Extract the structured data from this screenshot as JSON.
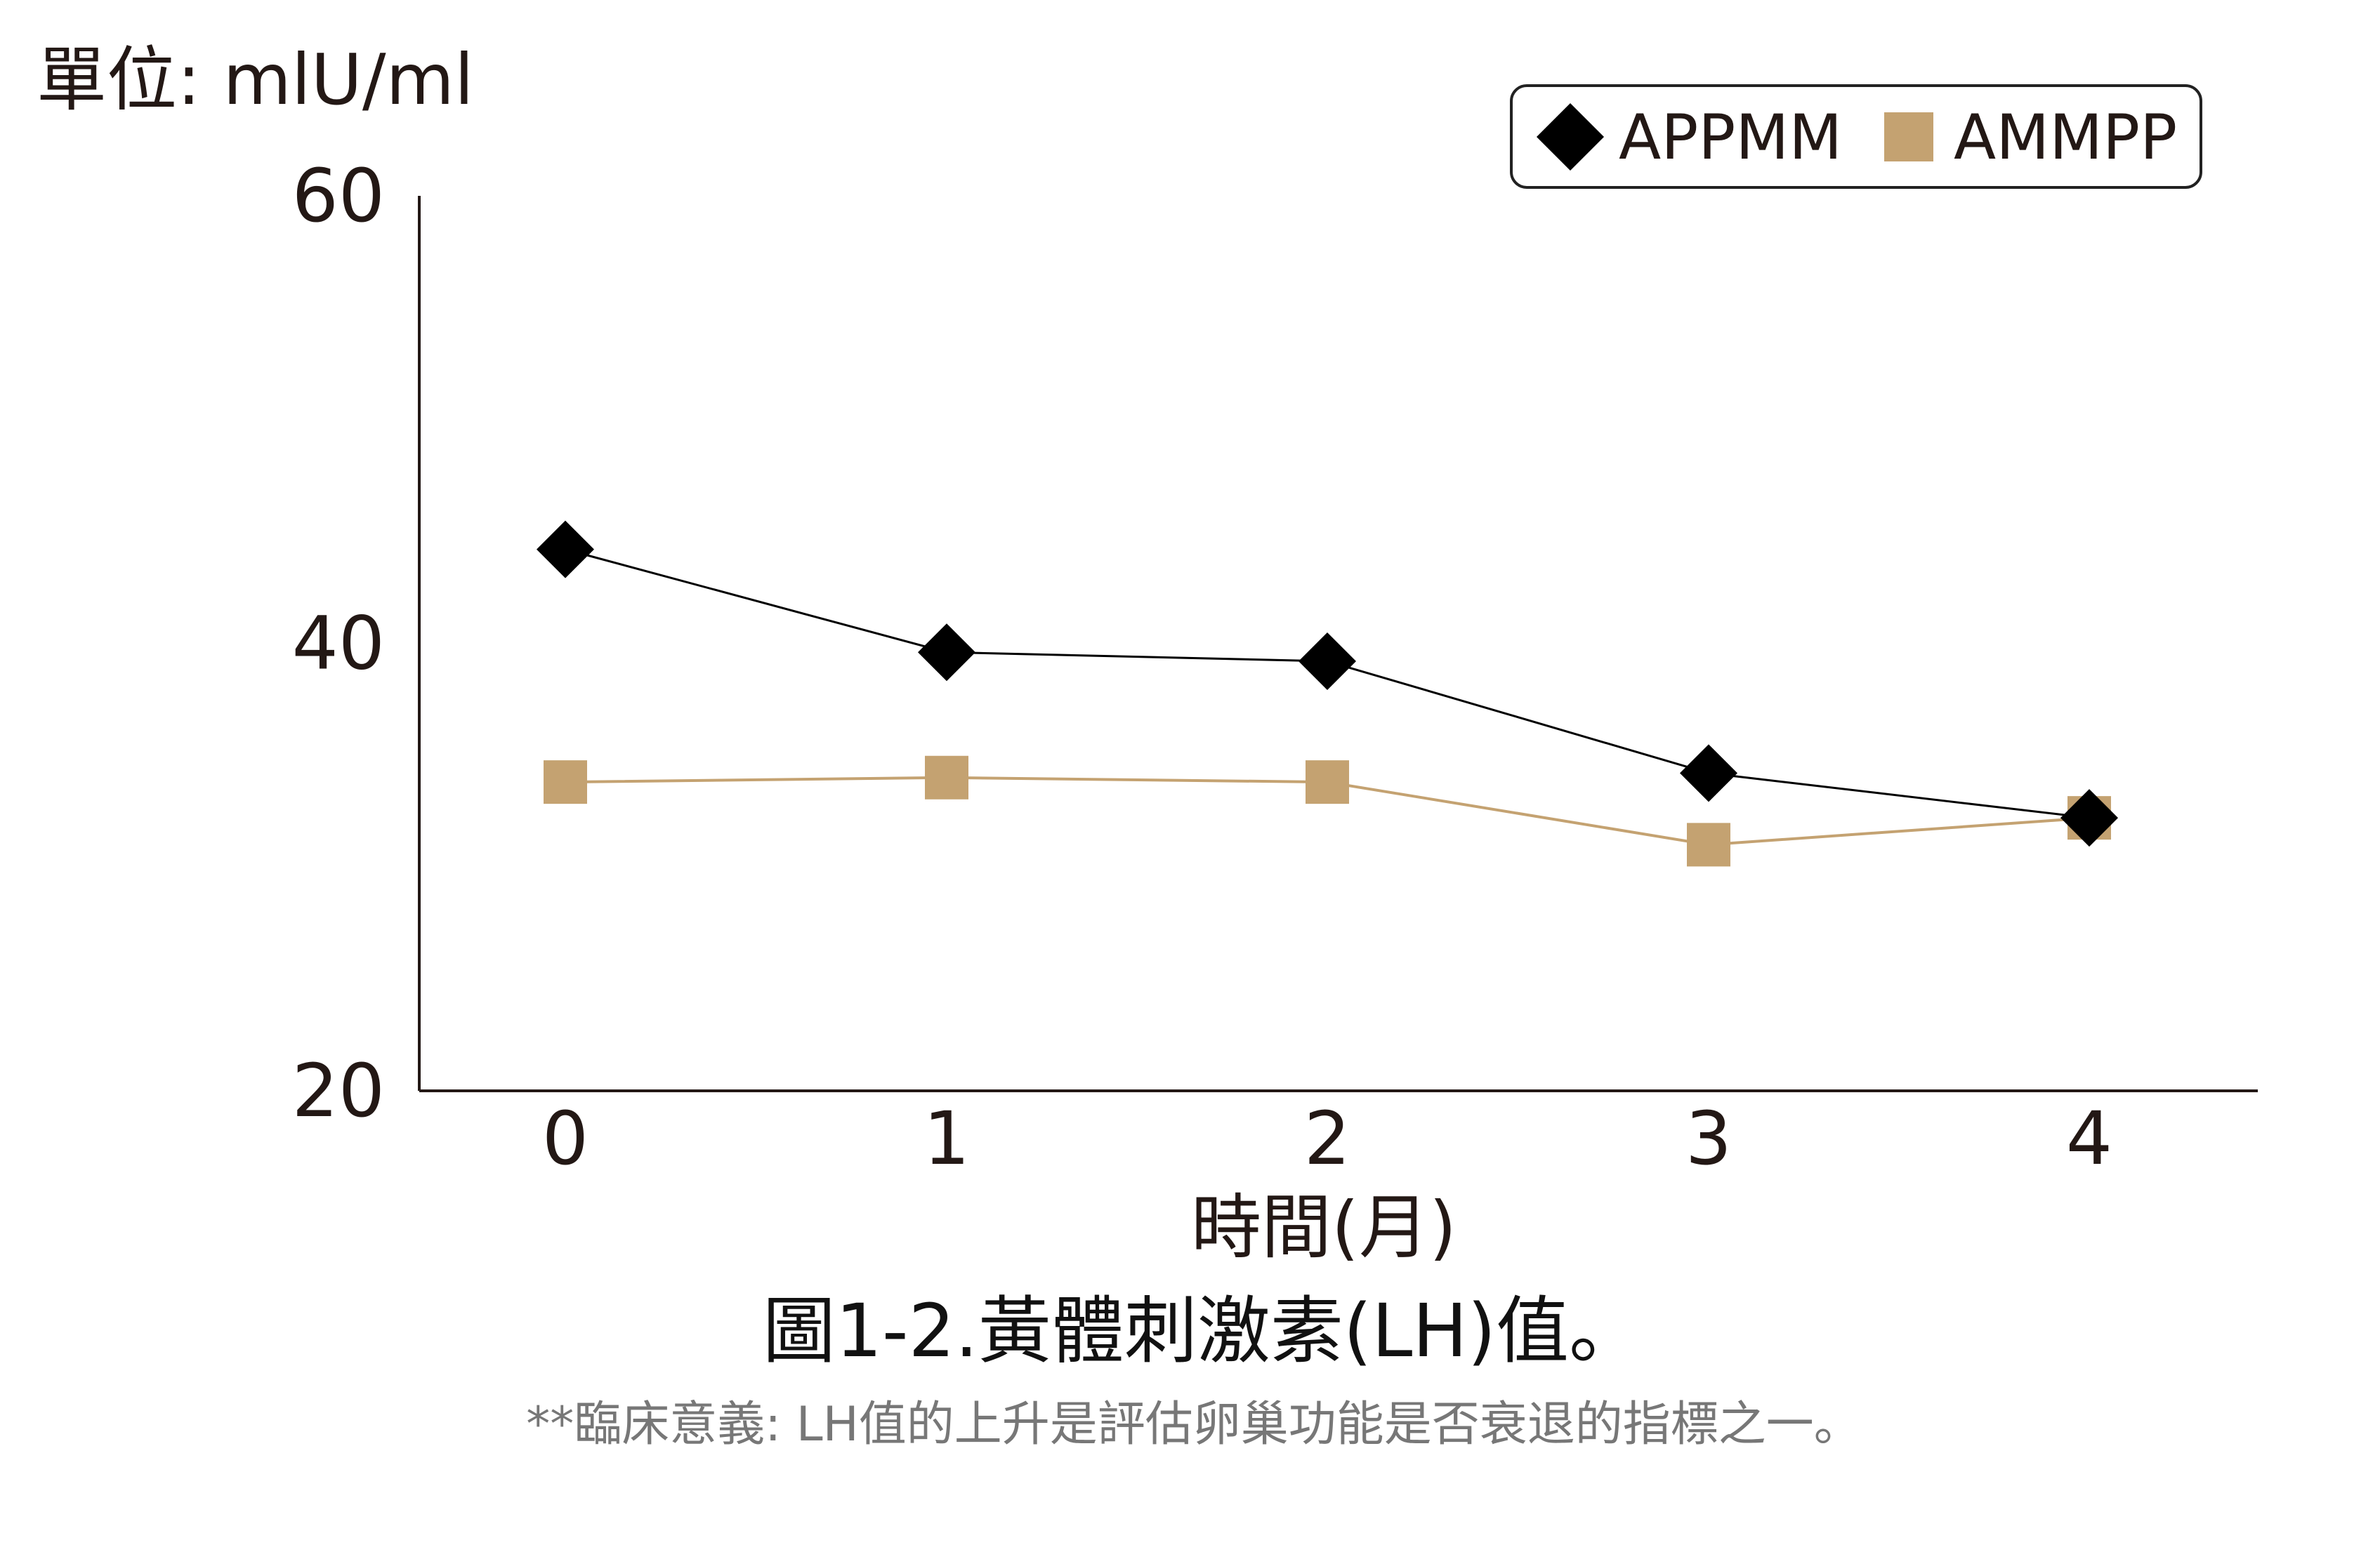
{
  "unit_label": "單位: mlU/ml",
  "figure_title": "圖1-2.黃體刺激素(LH)值。",
  "note": "**臨床意義: LH值的上升是評估卵巢功能是否衰退的指標之一。",
  "chart_data": {
    "type": "line",
    "title": "",
    "xlabel": "時間(月)",
    "ylabel": "單位: mlU/ml",
    "x": [
      0,
      1,
      2,
      3,
      4
    ],
    "categories": [
      "0",
      "1",
      "2",
      "3",
      "4"
    ],
    "ylim": [
      20,
      60
    ],
    "yticks": [
      "20",
      "40",
      "60"
    ],
    "grid": false,
    "legend_position": "top-right",
    "series": [
      {
        "name": "APPMM",
        "marker": "diamond",
        "color": "#000000",
        "values": [
          44.2,
          39.6,
          39.2,
          34.2,
          32.2
        ]
      },
      {
        "name": "AMMPP",
        "marker": "square",
        "color": "#c4a271",
        "values": [
          33.8,
          34.0,
          33.8,
          31.0,
          32.2
        ]
      }
    ]
  }
}
